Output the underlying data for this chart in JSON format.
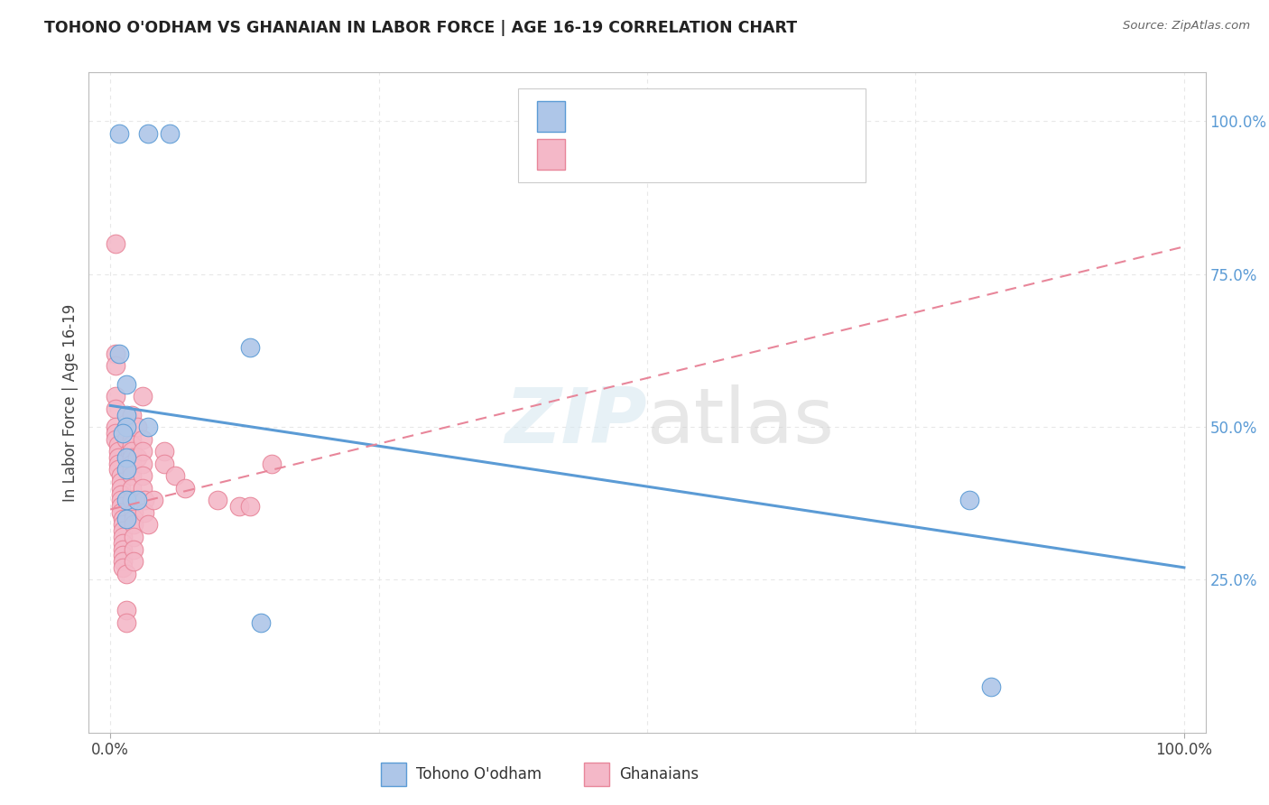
{
  "title": "TOHONO O'ODHAM VS GHANAIAN IN LABOR FORCE | AGE 16-19 CORRELATION CHART",
  "source": "Source: ZipAtlas.com",
  "ylabel": "In Labor Force | Age 16-19",
  "xlim": [
    -0.02,
    1.02
  ],
  "ylim": [
    0.0,
    1.08
  ],
  "watermark": "ZIPatlas",
  "blue_scatter": [
    [
      0.008,
      0.98
    ],
    [
      0.035,
      0.98
    ],
    [
      0.055,
      0.98
    ],
    [
      0.008,
      0.62
    ],
    [
      0.015,
      0.57
    ],
    [
      0.015,
      0.52
    ],
    [
      0.015,
      0.5
    ],
    [
      0.012,
      0.49
    ],
    [
      0.035,
      0.5
    ],
    [
      0.015,
      0.45
    ],
    [
      0.015,
      0.43
    ],
    [
      0.015,
      0.38
    ],
    [
      0.025,
      0.38
    ],
    [
      0.015,
      0.35
    ],
    [
      0.13,
      0.63
    ],
    [
      0.14,
      0.18
    ],
    [
      0.8,
      0.38
    ],
    [
      0.82,
      0.075
    ]
  ],
  "pink_scatter": [
    [
      0.005,
      0.8
    ],
    [
      0.005,
      0.62
    ],
    [
      0.005,
      0.6
    ],
    [
      0.005,
      0.55
    ],
    [
      0.005,
      0.53
    ],
    [
      0.005,
      0.5
    ],
    [
      0.005,
      0.49
    ],
    [
      0.005,
      0.48
    ],
    [
      0.007,
      0.47
    ],
    [
      0.007,
      0.46
    ],
    [
      0.007,
      0.45
    ],
    [
      0.007,
      0.44
    ],
    [
      0.007,
      0.43
    ],
    [
      0.01,
      0.42
    ],
    [
      0.01,
      0.41
    ],
    [
      0.01,
      0.4
    ],
    [
      0.01,
      0.39
    ],
    [
      0.01,
      0.38
    ],
    [
      0.01,
      0.37
    ],
    [
      0.01,
      0.36
    ],
    [
      0.012,
      0.35
    ],
    [
      0.012,
      0.34
    ],
    [
      0.012,
      0.33
    ],
    [
      0.012,
      0.32
    ],
    [
      0.012,
      0.31
    ],
    [
      0.012,
      0.3
    ],
    [
      0.012,
      0.29
    ],
    [
      0.012,
      0.28
    ],
    [
      0.012,
      0.27
    ],
    [
      0.015,
      0.26
    ],
    [
      0.015,
      0.2
    ],
    [
      0.015,
      0.18
    ],
    [
      0.015,
      0.5
    ],
    [
      0.015,
      0.48
    ],
    [
      0.018,
      0.46
    ],
    [
      0.02,
      0.52
    ],
    [
      0.02,
      0.48
    ],
    [
      0.02,
      0.47
    ],
    [
      0.02,
      0.46
    ],
    [
      0.02,
      0.45
    ],
    [
      0.02,
      0.44
    ],
    [
      0.02,
      0.43
    ],
    [
      0.02,
      0.42
    ],
    [
      0.02,
      0.4
    ],
    [
      0.02,
      0.38
    ],
    [
      0.022,
      0.36
    ],
    [
      0.022,
      0.35
    ],
    [
      0.022,
      0.34
    ],
    [
      0.022,
      0.32
    ],
    [
      0.022,
      0.3
    ],
    [
      0.022,
      0.28
    ],
    [
      0.025,
      0.5
    ],
    [
      0.025,
      0.45
    ],
    [
      0.03,
      0.55
    ],
    [
      0.03,
      0.48
    ],
    [
      0.03,
      0.46
    ],
    [
      0.03,
      0.44
    ],
    [
      0.03,
      0.42
    ],
    [
      0.03,
      0.4
    ],
    [
      0.032,
      0.38
    ],
    [
      0.032,
      0.36
    ],
    [
      0.035,
      0.34
    ],
    [
      0.04,
      0.38
    ],
    [
      0.05,
      0.46
    ],
    [
      0.05,
      0.44
    ],
    [
      0.06,
      0.42
    ],
    [
      0.07,
      0.4
    ],
    [
      0.1,
      0.38
    ],
    [
      0.12,
      0.37
    ],
    [
      0.13,
      0.37
    ],
    [
      0.15,
      0.44
    ]
  ],
  "blue_line": [
    [
      0.0,
      0.535
    ],
    [
      1.0,
      0.27
    ]
  ],
  "pink_line": [
    [
      0.0,
      0.365
    ],
    [
      1.0,
      0.795
    ]
  ],
  "blue_color": "#5b9bd5",
  "pink_color": "#e8869a",
  "blue_fill": "#aec6e8",
  "pink_fill": "#f4b8c8",
  "grid_color": "#e8e8e8",
  "background_color": "#ffffff",
  "label_blue": "Tohono O'odham",
  "label_pink": "Ghanaians"
}
